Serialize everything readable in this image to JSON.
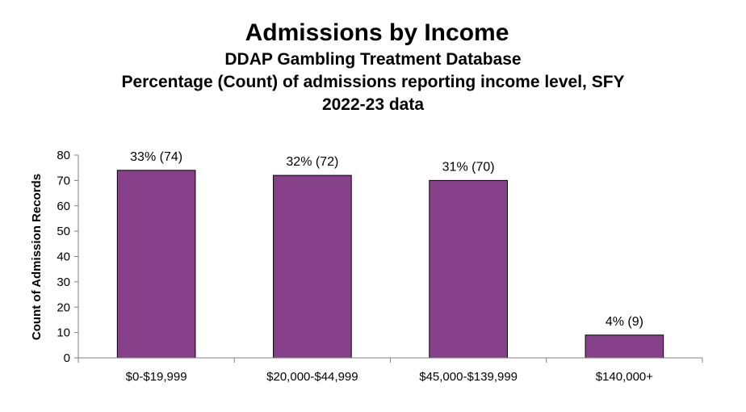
{
  "chart_data": {
    "type": "bar",
    "title": "Admissions by Income",
    "subtitle": [
      "DDAP Gambling Treatment Database",
      "Percentage (Count) of admissions reporting income level, SFY",
      "2022-23 data"
    ],
    "xlabel": "",
    "ylabel": "Count of Admission Records",
    "categories": [
      "$0-$19,999",
      "$20,000-$44,999",
      "$45,000-$139,999",
      "$140,000+"
    ],
    "values": [
      74,
      72,
      70,
      9
    ],
    "data_labels": [
      "33% (74)",
      "32% (72)",
      "31% (70)",
      "4% (9)"
    ],
    "ylim": [
      0,
      80
    ],
    "yticks": [
      "0",
      "10",
      "20",
      "30",
      "40",
      "50",
      "60",
      "70",
      "80"
    ],
    "grid": false,
    "legend": "none",
    "colors": {
      "bar_fill": "#86418A",
      "bar_stroke": "#000000",
      "axis": "#808080"
    }
  }
}
